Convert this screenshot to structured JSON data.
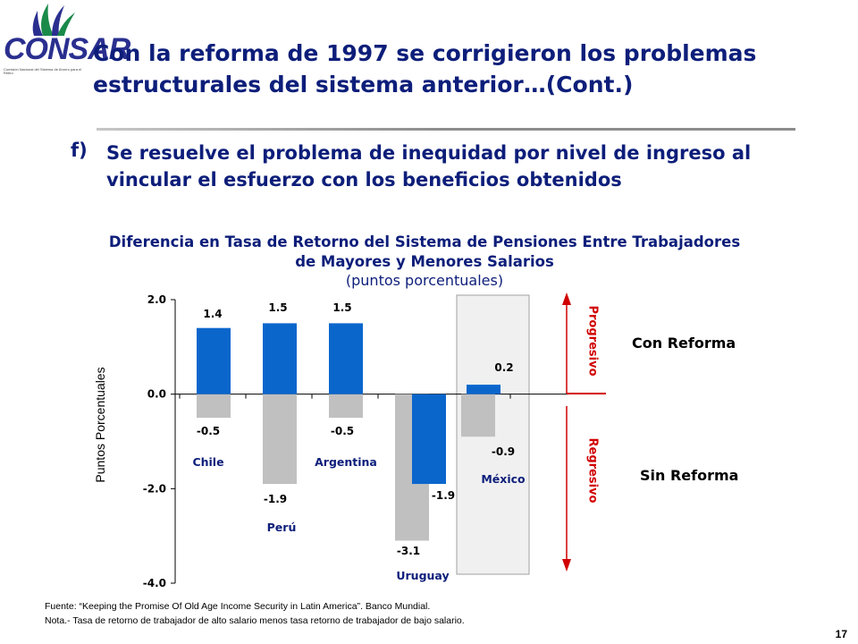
{
  "logo": {
    "text": "CONSAR",
    "subtext": "Comisión Nacional del Sistema de Ahorro para el Retiro"
  },
  "title": "Con la reforma de 1997 se corrigieron los problemas estructurales del sistema anterior…(Cont.)",
  "point": {
    "marker": "f)",
    "text": "Se resuelve el problema de inequidad por nivel de ingreso al vincular el esfuerzo con los beneficios obtenidos"
  },
  "chart_data": {
    "type": "bar",
    "title": "Diferencia en Tasa de Retorno del Sistema de Pensiones Entre Trabajadores de Mayores y Menores Salarios",
    "subtitle": "(puntos porcentuales)",
    "ylabel": "Puntos Porcentuales",
    "ylim": [
      -4.0,
      2.0
    ],
    "yticks": [
      2.0,
      0.0,
      -2.0,
      -4.0
    ],
    "ytick_labels": [
      "2.0",
      "0.0",
      "-2.0",
      "-4.0"
    ],
    "categories": [
      "Chile",
      "Perú",
      "Argentina",
      "Uruguay",
      "México"
    ],
    "series": [
      {
        "name": "Sin Reforma",
        "color": "#c0c0c0",
        "values": [
          -0.5,
          -1.9,
          -0.5,
          -3.1,
          -0.9
        ],
        "labels": [
          "-0.5",
          "-1.9",
          "-0.5",
          "-3.1",
          "-0.9"
        ]
      },
      {
        "name": "Con Reforma",
        "color": "#0b66cc",
        "values": [
          1.4,
          1.5,
          1.5,
          -1.9,
          0.2
        ],
        "labels": [
          "1.4",
          "1.5",
          "1.5",
          "-1.9",
          "0.2"
        ]
      }
    ],
    "highlight_category": "México",
    "grid": false
  },
  "annotations": {
    "progresivo": "Progresivo",
    "regresivo": "Regresivo",
    "con_reforma": "Con Reforma",
    "sin_reforma": "Sin Reforma",
    "arrow_color": "#d10000"
  },
  "footer": {
    "source": "Fuente:  “Keeping the Promise Of Old Age Income Security in Latin America”. Banco Mundial.",
    "note": "Nota.- Tasa de retorno de trabajador de alto salario menos tasa retorno de trabajador de bajo salario."
  },
  "page_number": "17"
}
